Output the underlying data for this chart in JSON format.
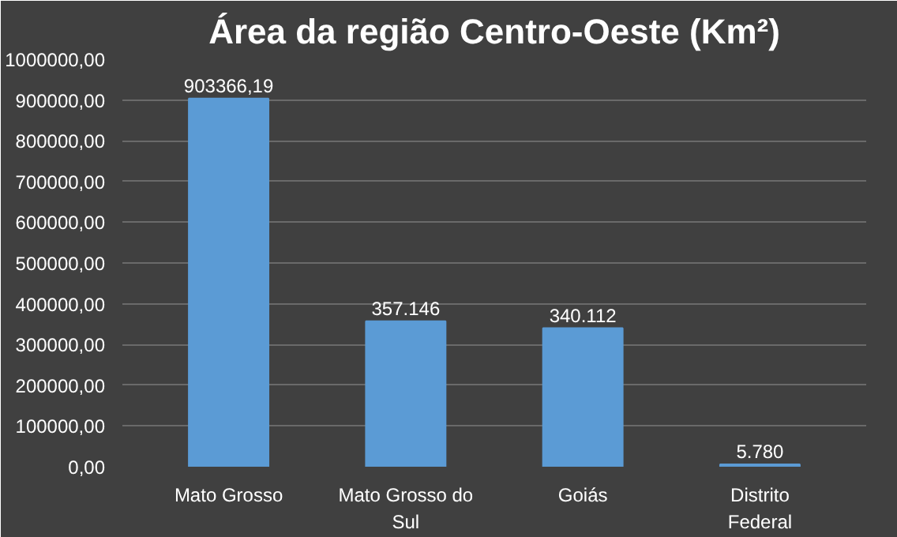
{
  "chart_data": {
    "type": "bar",
    "title": "Área da região Centro-Oeste (Km²)",
    "categories": [
      "Mato Grosso",
      "Mato Grosso do Sul",
      "Goiás",
      "Distrito Federal"
    ],
    "values": [
      903366.19,
      357146,
      340112,
      5780
    ],
    "value_labels": [
      "903366,19",
      "357.146",
      "340.112",
      "5.780"
    ],
    "color": "#5b9bd5",
    "ylim": [
      0,
      1000000
    ],
    "yticks": [
      {
        "value": 0,
        "label": "0,00"
      },
      {
        "value": 100000,
        "label": "100000,00"
      },
      {
        "value": 200000,
        "label": "200000,00"
      },
      {
        "value": 300000,
        "label": "300000,00"
      },
      {
        "value": 400000,
        "label": "400000,00"
      },
      {
        "value": 500000,
        "label": "500000,00"
      },
      {
        "value": 600000,
        "label": "600000,00"
      },
      {
        "value": 700000,
        "label": "700000,00"
      },
      {
        "value": 800000,
        "label": "800000,00"
      },
      {
        "value": 900000,
        "label": "900000,00"
      },
      {
        "value": 1000000,
        "label": "1000000,00"
      }
    ],
    "grid": "y"
  }
}
